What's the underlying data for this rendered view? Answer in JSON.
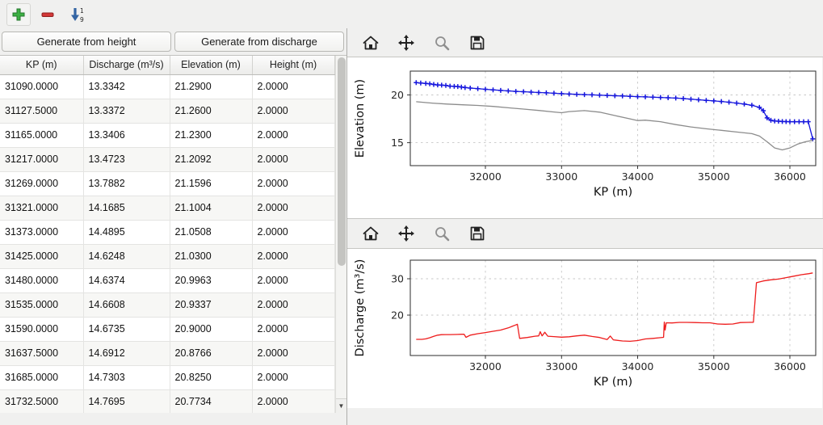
{
  "main_toolbar": {
    "icons": [
      "add-icon",
      "remove-icon",
      "sort-ascending-icon"
    ]
  },
  "left_panel": {
    "buttons": {
      "generate_from_height": "Generate from height",
      "generate_from_discharge": "Generate from discharge"
    },
    "table": {
      "columns": [
        "KP (m)",
        "Discharge (m³/s)",
        "Elevation (m)",
        "Height (m)"
      ],
      "rows": [
        [
          "31090.0000",
          "13.3342",
          "21.2900",
          "2.0000"
        ],
        [
          "31127.5000",
          "13.3372",
          "21.2600",
          "2.0000"
        ],
        [
          "31165.0000",
          "13.3406",
          "21.2300",
          "2.0000"
        ],
        [
          "31217.0000",
          "13.4723",
          "21.2092",
          "2.0000"
        ],
        [
          "31269.0000",
          "13.7882",
          "21.1596",
          "2.0000"
        ],
        [
          "31321.0000",
          "14.1685",
          "21.1004",
          "2.0000"
        ],
        [
          "31373.0000",
          "14.4895",
          "21.0508",
          "2.0000"
        ],
        [
          "31425.0000",
          "14.6248",
          "21.0300",
          "2.0000"
        ],
        [
          "31480.0000",
          "14.6374",
          "20.9963",
          "2.0000"
        ],
        [
          "31535.0000",
          "14.6608",
          "20.9337",
          "2.0000"
        ],
        [
          "31590.0000",
          "14.6735",
          "20.9000",
          "2.0000"
        ],
        [
          "31637.5000",
          "14.6912",
          "20.8766",
          "2.0000"
        ],
        [
          "31685.0000",
          "14.7303",
          "20.8250",
          "2.0000"
        ],
        [
          "31732.5000",
          "14.7695",
          "20.7734",
          "2.0000"
        ]
      ]
    }
  },
  "plot_toolbar": {
    "icons": [
      "home-icon",
      "pan-icon",
      "zoom-icon",
      "save-icon"
    ]
  },
  "chart_data": [
    {
      "type": "line",
      "title": "",
      "xlabel": "KP (m)",
      "ylabel": "Elevation (m)",
      "xlim": [
        31013,
        36339
      ],
      "ylim": [
        12.6,
        22.5
      ],
      "xticks": [
        32000,
        33000,
        34000,
        35000,
        36000
      ],
      "yticks": [
        15,
        20
      ],
      "grid": true,
      "legend": "none",
      "series": [
        {
          "name": "water-elevation",
          "color": "#1515dd",
          "marker": "plus",
          "points": [
            [
              31090,
              21.29
            ],
            [
              31150,
              21.25
            ],
            [
              31217,
              21.21
            ],
            [
              31269,
              21.16
            ],
            [
              31321,
              21.1
            ],
            [
              31373,
              21.05
            ],
            [
              31425,
              21.03
            ],
            [
              31480,
              21.0
            ],
            [
              31535,
              20.93
            ],
            [
              31590,
              20.9
            ],
            [
              31637,
              20.88
            ],
            [
              31685,
              20.83
            ],
            [
              31732,
              20.77
            ],
            [
              31800,
              20.72
            ],
            [
              31900,
              20.66
            ],
            [
              32000,
              20.6
            ],
            [
              32100,
              20.54
            ],
            [
              32200,
              20.48
            ],
            [
              32300,
              20.43
            ],
            [
              32400,
              20.38
            ],
            [
              32500,
              20.34
            ],
            [
              32600,
              20.3
            ],
            [
              32700,
              20.26
            ],
            [
              32800,
              20.22
            ],
            [
              32900,
              20.18
            ],
            [
              33000,
              20.14
            ],
            [
              33100,
              20.1
            ],
            [
              33200,
              20.07
            ],
            [
              33300,
              20.04
            ],
            [
              33400,
              20.01
            ],
            [
              33500,
              19.98
            ],
            [
              33600,
              19.95
            ],
            [
              33700,
              19.92
            ],
            [
              33800,
              19.89
            ],
            [
              33900,
              19.86
            ],
            [
              34000,
              19.83
            ],
            [
              34100,
              19.8
            ],
            [
              34200,
              19.77
            ],
            [
              34300,
              19.74
            ],
            [
              34400,
              19.71
            ],
            [
              34500,
              19.67
            ],
            [
              34600,
              19.62
            ],
            [
              34700,
              19.56
            ],
            [
              34800,
              19.5
            ],
            [
              34900,
              19.44
            ],
            [
              35000,
              19.38
            ],
            [
              35100,
              19.32
            ],
            [
              35200,
              19.24
            ],
            [
              35300,
              19.15
            ],
            [
              35400,
              19.05
            ],
            [
              35500,
              18.92
            ],
            [
              35600,
              18.7
            ],
            [
              35650,
              18.35
            ],
            [
              35700,
              17.6
            ],
            [
              35750,
              17.35
            ],
            [
              35800,
              17.28
            ],
            [
              35850,
              17.25
            ],
            [
              35900,
              17.22
            ],
            [
              35950,
              17.21
            ],
            [
              36000,
              17.2
            ],
            [
              36060,
              17.2
            ],
            [
              36120,
              17.2
            ],
            [
              36180,
              17.2
            ],
            [
              36240,
              17.2
            ],
            [
              36300,
              15.4
            ]
          ]
        },
        {
          "name": "bed-elevation",
          "color": "#8c8c8c",
          "marker": "none",
          "points": [
            [
              31090,
              19.29
            ],
            [
              31300,
              19.15
            ],
            [
              31500,
              19.05
            ],
            [
              31700,
              18.97
            ],
            [
              31900,
              18.9
            ],
            [
              32100,
              18.8
            ],
            [
              32300,
              18.66
            ],
            [
              32500,
              18.52
            ],
            [
              32700,
              18.38
            ],
            [
              32900,
              18.22
            ],
            [
              33000,
              18.14
            ],
            [
              33100,
              18.26
            ],
            [
              33300,
              18.36
            ],
            [
              33500,
              18.2
            ],
            [
              33700,
              17.85
            ],
            [
              33900,
              17.5
            ],
            [
              34000,
              17.32
            ],
            [
              34100,
              17.36
            ],
            [
              34300,
              17.2
            ],
            [
              34500,
              16.9
            ],
            [
              34700,
              16.65
            ],
            [
              34900,
              16.46
            ],
            [
              35100,
              16.3
            ],
            [
              35300,
              16.12
            ],
            [
              35500,
              15.95
            ],
            [
              35600,
              15.7
            ],
            [
              35700,
              15.1
            ],
            [
              35800,
              14.45
            ],
            [
              35900,
              14.25
            ],
            [
              36000,
              14.45
            ],
            [
              36100,
              14.85
            ],
            [
              36200,
              15.1
            ],
            [
              36300,
              15.25
            ]
          ]
        }
      ]
    },
    {
      "type": "line",
      "title": "",
      "xlabel": "KP (m)",
      "ylabel": "Discharge (m³/s)",
      "xlim": [
        31013,
        36339
      ],
      "ylim": [
        8.9,
        35.1
      ],
      "xticks": [
        32000,
        33000,
        34000,
        35000,
        36000
      ],
      "yticks": [
        20,
        30
      ],
      "grid": true,
      "legend": "none",
      "series": [
        {
          "name": "discharge",
          "color": "#ee1c1c",
          "marker": "none",
          "points": [
            [
              31090,
              13.33
            ],
            [
              31165,
              13.34
            ],
            [
              31217,
              13.47
            ],
            [
              31269,
              13.79
            ],
            [
              31321,
              14.17
            ],
            [
              31373,
              14.49
            ],
            [
              31425,
              14.62
            ],
            [
              31480,
              14.64
            ],
            [
              31535,
              14.66
            ],
            [
              31590,
              14.67
            ],
            [
              31637,
              14.69
            ],
            [
              31685,
              14.73
            ],
            [
              31720,
              14.75
            ],
            [
              31745,
              13.9
            ],
            [
              31800,
              14.5
            ],
            [
              31900,
              14.9
            ],
            [
              32000,
              15.2
            ],
            [
              32100,
              15.55
            ],
            [
              32200,
              15.9
            ],
            [
              32300,
              16.5
            ],
            [
              32420,
              17.5
            ],
            [
              32450,
              13.6
            ],
            [
              32550,
              13.85
            ],
            [
              32650,
              14.2
            ],
            [
              32700,
              14.3
            ],
            [
              32720,
              15.45
            ],
            [
              32745,
              14.3
            ],
            [
              32780,
              15.3
            ],
            [
              32820,
              14.2
            ],
            [
              32900,
              14.1
            ],
            [
              33000,
              13.95
            ],
            [
              33100,
              14.05
            ],
            [
              33200,
              14.3
            ],
            [
              33300,
              14.5
            ],
            [
              33400,
              14.15
            ],
            [
              33500,
              13.85
            ],
            [
              33600,
              13.3
            ],
            [
              33640,
              14.25
            ],
            [
              33680,
              13.2
            ],
            [
              33800,
              12.9
            ],
            [
              33900,
              12.8
            ],
            [
              34000,
              13.0
            ],
            [
              34100,
              13.45
            ],
            [
              34200,
              13.6
            ],
            [
              34300,
              13.8
            ],
            [
              34340,
              13.9
            ],
            [
              34350,
              18.1
            ],
            [
              34360,
              15.9
            ],
            [
              34375,
              17.9
            ],
            [
              34450,
              17.85
            ],
            [
              34550,
              18.0
            ],
            [
              34650,
              18.0
            ],
            [
              34750,
              17.95
            ],
            [
              34850,
              17.9
            ],
            [
              34950,
              17.9
            ],
            [
              35050,
              17.55
            ],
            [
              35150,
              17.5
            ],
            [
              35250,
              17.55
            ],
            [
              35350,
              17.95
            ],
            [
              35450,
              18.0
            ],
            [
              35520,
              18.05
            ],
            [
              35560,
              28.9
            ],
            [
              35650,
              29.4
            ],
            [
              35750,
              29.7
            ],
            [
              35850,
              29.9
            ],
            [
              35950,
              30.3
            ],
            [
              36050,
              30.7
            ],
            [
              36150,
              31.1
            ],
            [
              36250,
              31.4
            ],
            [
              36300,
              31.6
            ]
          ]
        }
      ]
    }
  ]
}
